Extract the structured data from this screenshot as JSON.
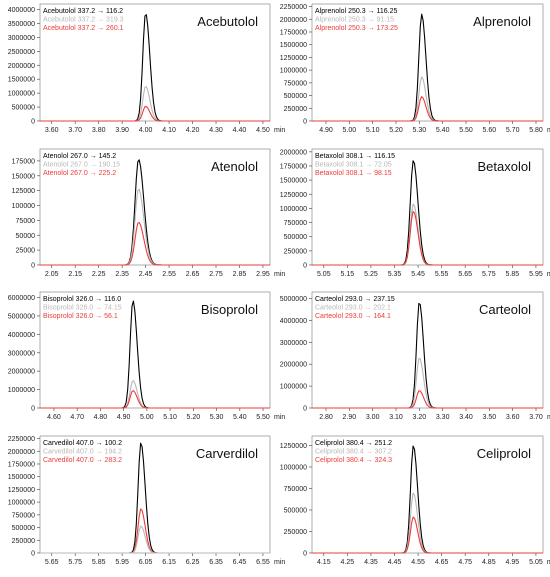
{
  "chart_data": [
    {
      "type": "line",
      "title": "Acebutolol",
      "xlabel": "min",
      "xticks": [
        3.6,
        3.7,
        3.8,
        3.9,
        4.0,
        4.1,
        4.2,
        4.3,
        4.4,
        4.5
      ],
      "xtick_labels": [
        "3.60",
        "3.70",
        "3.80",
        "3.90",
        "4.00",
        "4.10",
        "4.20",
        "4.30",
        "4.40",
        "4.50"
      ],
      "xlim": [
        3.55,
        4.53
      ],
      "yticks": [
        0,
        500000,
        1000000,
        1500000,
        2000000,
        2500000,
        3000000,
        3500000,
        4000000
      ],
      "ylim": [
        0,
        4200000
      ],
      "peak_rt": 4.0,
      "peak_width": 0.012,
      "series": [
        {
          "name": "Acebutolol 337.2 → 116.2",
          "color": "#000000",
          "height": 3880000
        },
        {
          "name": "Acebutolol 337.2 → 319.3",
          "color": "#b8b8b8",
          "height": 1250000
        },
        {
          "name": "Acebutolol 337.2 → 260.1",
          "color": "#ee3b3b",
          "height": 530000
        }
      ]
    },
    {
      "type": "line",
      "title": "Alprenolol",
      "xlabel": "min",
      "xticks": [
        4.9,
        5.0,
        5.1,
        5.2,
        5.3,
        5.4,
        5.5,
        5.6,
        5.7,
        5.8
      ],
      "xtick_labels": [
        "4.90",
        "5.00",
        "5.10",
        "5.20",
        "5.30",
        "5.40",
        "5.50",
        "5.60",
        "5.70",
        "5.80"
      ],
      "xlim": [
        4.84,
        5.83
      ],
      "yticks": [
        0,
        250000,
        500000,
        750000,
        1000000,
        1250000,
        1500000,
        1750000,
        2000000,
        2250000
      ],
      "ylim": [
        0,
        2300000
      ],
      "peak_rt": 5.31,
      "peak_width": 0.012,
      "series": [
        {
          "name": "Alprenolol 250.3 → 116.25",
          "color": "#000000",
          "height": 2100000
        },
        {
          "name": "Alprenolol 250.3 → 91.15",
          "color": "#b8b8b8",
          "height": 870000
        },
        {
          "name": "Alprenolol 250.3 → 173.25",
          "color": "#ee3b3b",
          "height": 480000
        }
      ]
    },
    {
      "type": "line",
      "title": "Atenolol",
      "xlabel": "min",
      "xticks": [
        2.05,
        2.15,
        2.25,
        2.35,
        2.45,
        2.55,
        2.65,
        2.75,
        2.85,
        2.95
      ],
      "xtick_labels": [
        "2.05",
        "2.15",
        "2.25",
        "2.35",
        "2.45",
        "2.55",
        "2.65",
        "2.75",
        "2.85",
        "2.95"
      ],
      "xlim": [
        2.0,
        2.98
      ],
      "yticks": [
        0,
        25000,
        50000,
        75000,
        100000,
        125000,
        150000,
        175000
      ],
      "ylim": [
        0,
        195000
      ],
      "peak_rt": 2.42,
      "peak_width": 0.015,
      "series": [
        {
          "name": "Atenolol 267.0 → 145.2",
          "color": "#000000",
          "height": 178000
        },
        {
          "name": "Atenolol 267.0 → 190.15",
          "color": "#b8b8b8",
          "height": 128000
        },
        {
          "name": "Atenolol 267.0 → 225.2",
          "color": "#ee3b3b",
          "height": 72000
        }
      ]
    },
    {
      "type": "line",
      "title": "Betaxolol",
      "xlabel": "min",
      "xticks": [
        5.05,
        5.15,
        5.25,
        5.35,
        5.45,
        5.55,
        5.65,
        5.75,
        5.85,
        5.95
      ],
      "xtick_labels": [
        "5.05",
        "5.15",
        "5.25",
        "5.35",
        "5.45",
        "5.55",
        "5.65",
        "5.75",
        "5.85",
        "5.95"
      ],
      "xlim": [
        5.0,
        5.98
      ],
      "yticks": [
        0,
        250000,
        500000,
        750000,
        1000000,
        1250000,
        1500000,
        1750000,
        2000000
      ],
      "ylim": [
        0,
        2050000
      ],
      "peak_rt": 5.43,
      "peak_width": 0.013,
      "series": [
        {
          "name": "Betaxolol 308.1 → 116.15",
          "color": "#000000",
          "height": 1850000
        },
        {
          "name": "Betaxolol 308.1 → 72.05",
          "color": "#b8b8b8",
          "height": 1080000
        },
        {
          "name": "Betaxolol 308.1 → 98.15",
          "color": "#ee3b3b",
          "height": 950000
        }
      ]
    },
    {
      "type": "line",
      "title": "Bisoprolol",
      "xlabel": "min",
      "xticks": [
        4.6,
        4.7,
        4.8,
        4.9,
        5.0,
        5.1,
        5.2,
        5.3,
        5.4,
        5.5
      ],
      "xtick_labels": [
        "4.60",
        "4.70",
        "4.80",
        "4.90",
        "5.00",
        "5.10",
        "5.20",
        "5.30",
        "5.40",
        "5.50"
      ],
      "xlim": [
        4.54,
        5.53
      ],
      "yticks": [
        0,
        1000000,
        2000000,
        3000000,
        4000000,
        5000000,
        6000000
      ],
      "ylim": [
        0,
        6300000
      ],
      "peak_rt": 4.94,
      "peak_width": 0.012,
      "series": [
        {
          "name": "Bisoprolol 326.0 → 116.0",
          "color": "#000000",
          "height": 5850000
        },
        {
          "name": "Bisoprolol 326.0 → 74.15",
          "color": "#b8b8b8",
          "height": 1500000
        },
        {
          "name": "Bisoprolol 326.0 → 56.1",
          "color": "#ee3b3b",
          "height": 950000
        }
      ]
    },
    {
      "type": "line",
      "title": "Carteolol",
      "xlabel": "min",
      "xticks": [
        2.8,
        2.9,
        3.0,
        3.1,
        3.2,
        3.3,
        3.4,
        3.5,
        3.6,
        3.7
      ],
      "xtick_labels": [
        "2.80",
        "2.90",
        "3.00",
        "3.10",
        "3.20",
        "3.30",
        "3.40",
        "3.50",
        "3.60",
        "3.70"
      ],
      "xlim": [
        2.74,
        3.73
      ],
      "yticks": [
        0,
        1000000,
        2000000,
        3000000,
        4000000,
        5000000
      ],
      "ylim": [
        0,
        5300000
      ],
      "peak_rt": 3.2,
      "peak_width": 0.012,
      "series": [
        {
          "name": "Carteolol 293.0 → 237.15",
          "color": "#000000",
          "height": 4850000
        },
        {
          "name": "Carteolol 293.0 → 202.1",
          "color": "#b8b8b8",
          "height": 2300000
        },
        {
          "name": "Carteolol 293.0 → 164.1",
          "color": "#ee3b3b",
          "height": 800000
        }
      ]
    },
    {
      "type": "line",
      "title": "Carverdilol",
      "xlabel": "min",
      "xticks": [
        5.65,
        5.75,
        5.85,
        5.95,
        6.05,
        6.15,
        6.25,
        6.35,
        6.45,
        6.55
      ],
      "xtick_labels": [
        "5.65",
        "5.75",
        "5.85",
        "5.95",
        "6.05",
        "6.15",
        "6.25",
        "6.35",
        "6.45",
        "6.55"
      ],
      "xlim": [
        5.6,
        6.58
      ],
      "yticks": [
        0,
        250000,
        500000,
        750000,
        1000000,
        1250000,
        1500000,
        1750000,
        2000000,
        2250000
      ],
      "ylim": [
        0,
        2300000
      ],
      "peak_rt": 6.03,
      "peak_width": 0.012,
      "series": [
        {
          "name": "Carvedilol 407.0 → 100.2",
          "color": "#000000",
          "height": 2170000
        },
        {
          "name": "Carvedilol 407.0 → 194.2",
          "color": "#b8b8b8",
          "height": 530000
        },
        {
          "name": "Carvedilol 407.0 → 283.2",
          "color": "#ee3b3b",
          "height": 870000
        }
      ]
    },
    {
      "type": "line",
      "title": "Celiprolol",
      "xlabel": "min",
      "xticks": [
        4.15,
        4.25,
        4.35,
        4.45,
        4.55,
        4.65,
        4.75,
        4.85,
        4.95,
        5.05
      ],
      "xtick_labels": [
        "4.15",
        "4.25",
        "4.35",
        "4.45",
        "4.55",
        "4.65",
        "4.75",
        "4.85",
        "4.95",
        "5.05"
      ],
      "xlim": [
        4.1,
        5.08
      ],
      "yticks": [
        0,
        250000,
        500000,
        750000,
        1000000,
        1250000
      ],
      "ylim": [
        0,
        1360000
      ],
      "peak_rt": 4.53,
      "peak_width": 0.012,
      "series": [
        {
          "name": "Celiprolol 380.4 → 251.2",
          "color": "#000000",
          "height": 1250000
        },
        {
          "name": "Celiprolol 380.4 → 307.2",
          "color": "#b8b8b8",
          "height": 700000
        },
        {
          "name": "Celiprolol 380.4 → 324.3",
          "color": "#ee3b3b",
          "height": 420000
        }
      ]
    }
  ]
}
